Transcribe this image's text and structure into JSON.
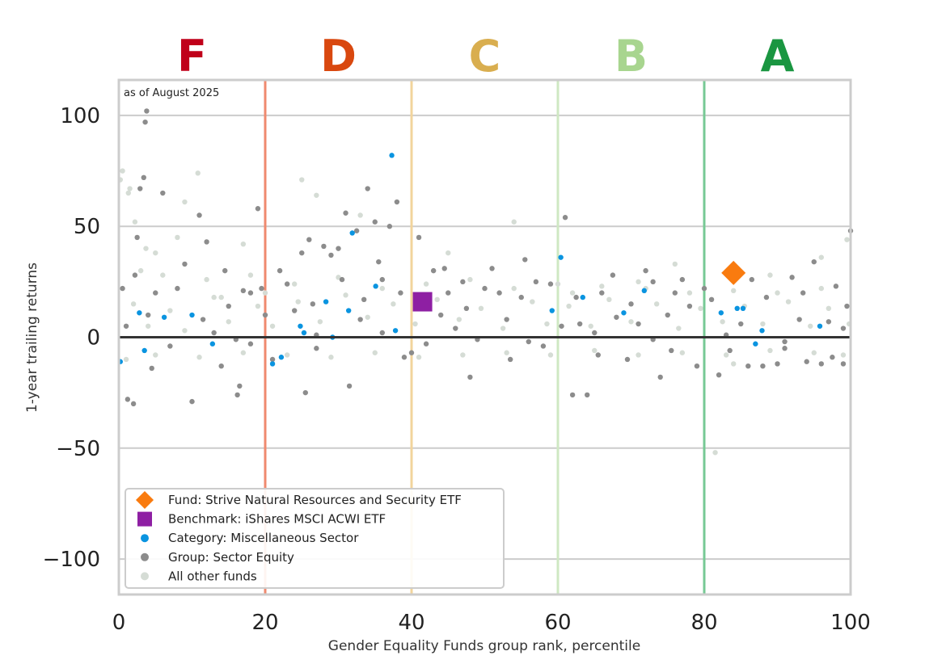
{
  "chart_data": {
    "type": "scatter",
    "title": "",
    "xlabel": "Gender Equality Funds group rank, percentile",
    "ylabel": "1-year trailing returns",
    "xlim": [
      0,
      100
    ],
    "ylim": [
      -116,
      116
    ],
    "x_ticks": [
      "0",
      "20",
      "40",
      "60",
      "80",
      "100"
    ],
    "y_ticks": [
      "100",
      "50",
      "0",
      "−50",
      "−100"
    ],
    "y_tick_values": [
      100,
      50,
      0,
      -50,
      -100
    ],
    "x_tick_values": [
      0,
      20,
      40,
      60,
      80,
      100
    ],
    "grid": "horizontal",
    "note": "as of August 2025",
    "grades": [
      {
        "letter": "F",
        "x": 10,
        "color": "#c0001a"
      },
      {
        "letter": "D",
        "x": 30,
        "color": "#d9480f"
      },
      {
        "letter": "C",
        "x": 50,
        "color": "#d9ae4f"
      },
      {
        "letter": "B",
        "x": 70,
        "color": "#a8d58f"
      },
      {
        "letter": "A",
        "x": 90,
        "color": "#1a9641"
      }
    ],
    "grade_boundaries": [
      {
        "x": 20,
        "color": "#ef8a6f"
      },
      {
        "x": 40,
        "color": "#f2d49c"
      },
      {
        "x": 60,
        "color": "#cfe8c3"
      },
      {
        "x": 80,
        "color": "#77c995"
      },
      {
        "x": 100,
        "color": "#9fd8b1"
      }
    ],
    "legend_position": "lower-left",
    "series": [
      {
        "name": "Fund: Strive Natural Resources and Security ETF",
        "marker": "diamond",
        "color": "#f97b0f",
        "points": [
          [
            84,
            29
          ]
        ]
      },
      {
        "name": "Benchmark: iShares MSCI ACWI ETF",
        "marker": "square",
        "color": "#8e1fa3",
        "points": [
          [
            41.5,
            16
          ]
        ]
      },
      {
        "name": "Category: Miscellaneous Sector",
        "marker": "dot",
        "color": "#0a94e0",
        "points": [
          [
            0.2,
            -11
          ],
          [
            2.8,
            11
          ],
          [
            3.5,
            -6
          ],
          [
            6.2,
            9
          ],
          [
            10,
            10
          ],
          [
            12.8,
            -3
          ],
          [
            21,
            -12
          ],
          [
            22.2,
            -9
          ],
          [
            24.8,
            5
          ],
          [
            25.3,
            2
          ],
          [
            28.3,
            16
          ],
          [
            29.2,
            0
          ],
          [
            31.4,
            12
          ],
          [
            31.9,
            47
          ],
          [
            35.1,
            23
          ],
          [
            37.3,
            82
          ],
          [
            37.8,
            3
          ],
          [
            59.2,
            12
          ],
          [
            60.4,
            36
          ],
          [
            63.4,
            18
          ],
          [
            69,
            11
          ],
          [
            71.8,
            21
          ],
          [
            82.3,
            11
          ],
          [
            84.5,
            13
          ],
          [
            85.3,
            13
          ],
          [
            87,
            -3
          ],
          [
            87.9,
            3
          ],
          [
            95.8,
            5
          ]
        ]
      },
      {
        "name": "Group: Sector Equity",
        "marker": "dot",
        "color": "#8c8c8c",
        "points": [
          [
            1.2,
            -28
          ],
          [
            2,
            -30
          ],
          [
            2.5,
            45
          ],
          [
            2.9,
            67
          ],
          [
            3.4,
            72
          ],
          [
            3.8,
            102
          ],
          [
            3.6,
            97
          ],
          [
            4.5,
            -14
          ],
          [
            6,
            65
          ],
          [
            10,
            -29
          ],
          [
            11,
            55
          ],
          [
            12,
            43
          ],
          [
            14,
            -13
          ],
          [
            16.5,
            -22
          ],
          [
            16.2,
            -26
          ],
          [
            17,
            21
          ],
          [
            18,
            20
          ],
          [
            19,
            58
          ],
          [
            19.5,
            22
          ],
          [
            21,
            -10
          ],
          [
            23,
            24
          ],
          [
            25.5,
            -25
          ],
          [
            25,
            38
          ],
          [
            26,
            44
          ],
          [
            27,
            -5
          ],
          [
            28,
            41
          ],
          [
            29,
            37
          ],
          [
            30,
            40
          ],
          [
            31,
            56
          ],
          [
            31.5,
            -22
          ],
          [
            32.5,
            48
          ],
          [
            34,
            67
          ],
          [
            35,
            52
          ],
          [
            36,
            26
          ],
          [
            37,
            50
          ],
          [
            38,
            61
          ],
          [
            39,
            -9
          ],
          [
            40,
            -7
          ],
          [
            41,
            45
          ],
          [
            43,
            30
          ],
          [
            45,
            20
          ],
          [
            47,
            25
          ],
          [
            48,
            -18
          ],
          [
            50,
            22
          ],
          [
            52,
            20
          ],
          [
            55,
            18
          ],
          [
            57,
            25
          ],
          [
            59,
            24
          ],
          [
            61,
            54
          ],
          [
            62,
            -26
          ],
          [
            64,
            -26
          ],
          [
            66,
            20
          ],
          [
            70,
            15
          ],
          [
            72,
            30
          ],
          [
            74,
            -18
          ],
          [
            76,
            20
          ],
          [
            78,
            14
          ],
          [
            80,
            22
          ],
          [
            82,
            -17
          ],
          [
            86,
            -13
          ],
          [
            88,
            -13
          ],
          [
            90,
            -12
          ],
          [
            92,
            27
          ],
          [
            94,
            -11
          ],
          [
            96,
            -12
          ],
          [
            98,
            23
          ],
          [
            99,
            -12
          ],
          [
            100,
            48
          ],
          [
            5,
            20
          ],
          [
            8,
            22
          ],
          [
            15,
            14
          ],
          [
            24,
            12
          ],
          [
            33,
            8
          ],
          [
            44,
            10
          ],
          [
            53,
            8
          ],
          [
            63,
            6
          ],
          [
            68,
            9
          ],
          [
            75,
            10
          ],
          [
            85,
            6
          ],
          [
            93,
            8
          ],
          [
            97,
            7
          ],
          [
            7,
            -4
          ],
          [
            13,
            2
          ],
          [
            18,
            -3
          ],
          [
            27,
            1
          ],
          [
            36,
            2
          ],
          [
            46,
            4
          ],
          [
            56,
            -2
          ],
          [
            65,
            2
          ],
          [
            73,
            -1
          ],
          [
            83,
            1
          ],
          [
            91,
            -2
          ],
          [
            99,
            4
          ],
          [
            0.5,
            22
          ],
          [
            1,
            5
          ],
          [
            2.2,
            28
          ],
          [
            4,
            10
          ],
          [
            9,
            33
          ],
          [
            11.5,
            8
          ],
          [
            14.5,
            30
          ],
          [
            16,
            -1
          ],
          [
            20,
            10
          ],
          [
            22,
            30
          ],
          [
            26.5,
            15
          ],
          [
            30.5,
            26
          ],
          [
            33.5,
            17
          ],
          [
            35.5,
            34
          ],
          [
            38.5,
            20
          ],
          [
            42,
            -3
          ],
          [
            44.5,
            31
          ],
          [
            47.5,
            13
          ],
          [
            49,
            -1
          ],
          [
            51,
            31
          ],
          [
            53.5,
            -10
          ],
          [
            55.5,
            35
          ],
          [
            58,
            -4
          ],
          [
            60.5,
            5
          ],
          [
            62.5,
            18
          ],
          [
            65.5,
            -8
          ],
          [
            67.5,
            28
          ],
          [
            69.5,
            -10
          ],
          [
            71,
            6
          ],
          [
            73,
            25
          ],
          [
            75.5,
            -6
          ],
          [
            77,
            26
          ],
          [
            79,
            -13
          ],
          [
            81,
            17
          ],
          [
            83.5,
            -6
          ],
          [
            86.5,
            26
          ],
          [
            88.5,
            18
          ],
          [
            91,
            -5
          ],
          [
            93.5,
            20
          ],
          [
            95,
            34
          ],
          [
            97.5,
            -9
          ],
          [
            99.5,
            14
          ]
        ]
      },
      {
        "name": "All other funds",
        "marker": "dot",
        "color": "#d5dcd5",
        "points": [
          [
            0.2,
            71
          ],
          [
            0.5,
            75
          ],
          [
            1.3,
            65
          ],
          [
            1.5,
            67
          ],
          [
            2.2,
            52
          ],
          [
            3.7,
            40
          ],
          [
            5,
            38
          ],
          [
            8,
            45
          ],
          [
            9,
            61
          ],
          [
            10.8,
            74
          ],
          [
            14,
            18
          ],
          [
            17,
            42
          ],
          [
            20,
            20
          ],
          [
            25,
            71
          ],
          [
            27,
            64
          ],
          [
            33,
            55
          ],
          [
            45,
            38
          ],
          [
            54,
            52
          ],
          [
            62,
            20
          ],
          [
            71,
            25
          ],
          [
            76,
            33
          ],
          [
            81.5,
            -52
          ],
          [
            84,
            -12
          ],
          [
            89,
            28
          ],
          [
            96,
            36
          ],
          [
            99.5,
            44
          ],
          [
            3,
            30
          ],
          [
            6,
            28
          ],
          [
            12,
            26
          ],
          [
            18,
            28
          ],
          [
            24,
            24
          ],
          [
            30,
            27
          ],
          [
            36,
            22
          ],
          [
            42,
            24
          ],
          [
            48,
            26
          ],
          [
            54,
            22
          ],
          [
            60,
            24
          ],
          [
            66,
            23
          ],
          [
            72,
            22
          ],
          [
            78,
            20
          ],
          [
            84,
            21
          ],
          [
            90,
            20
          ],
          [
            96,
            22
          ],
          [
            1,
            -10
          ],
          [
            5,
            -8
          ],
          [
            11,
            -9
          ],
          [
            17,
            -7
          ],
          [
            23,
            -8
          ],
          [
            29,
            -9
          ],
          [
            35,
            -7
          ],
          [
            41,
            -9
          ],
          [
            47,
            -8
          ],
          [
            53,
            -7
          ],
          [
            59,
            -8
          ],
          [
            65,
            -6
          ],
          [
            71,
            -8
          ],
          [
            77,
            -7
          ],
          [
            83,
            -8
          ],
          [
            89,
            -6
          ],
          [
            95,
            -7
          ],
          [
            99,
            -8
          ],
          [
            2,
            15
          ],
          [
            4,
            5
          ],
          [
            7,
            12
          ],
          [
            9,
            3
          ],
          [
            13,
            18
          ],
          [
            15,
            7
          ],
          [
            19,
            14
          ],
          [
            21,
            5
          ],
          [
            24.5,
            16
          ],
          [
            27.5,
            7
          ],
          [
            31,
            19
          ],
          [
            34,
            9
          ],
          [
            37.5,
            15
          ],
          [
            40.5,
            6
          ],
          [
            43.5,
            17
          ],
          [
            46.5,
            8
          ],
          [
            49.5,
            13
          ],
          [
            52.5,
            4
          ],
          [
            56.5,
            16
          ],
          [
            58.5,
            6
          ],
          [
            61.5,
            14
          ],
          [
            64.5,
            5
          ],
          [
            67,
            17
          ],
          [
            70,
            7
          ],
          [
            73.5,
            15
          ],
          [
            76.5,
            4
          ],
          [
            79.5,
            13
          ],
          [
            82.5,
            7
          ],
          [
            85.5,
            14
          ],
          [
            88,
            6
          ],
          [
            91.5,
            16
          ],
          [
            94.5,
            5
          ],
          [
            97,
            13
          ],
          [
            99.8,
            6
          ]
        ]
      }
    ],
    "zero_line": 0
  }
}
